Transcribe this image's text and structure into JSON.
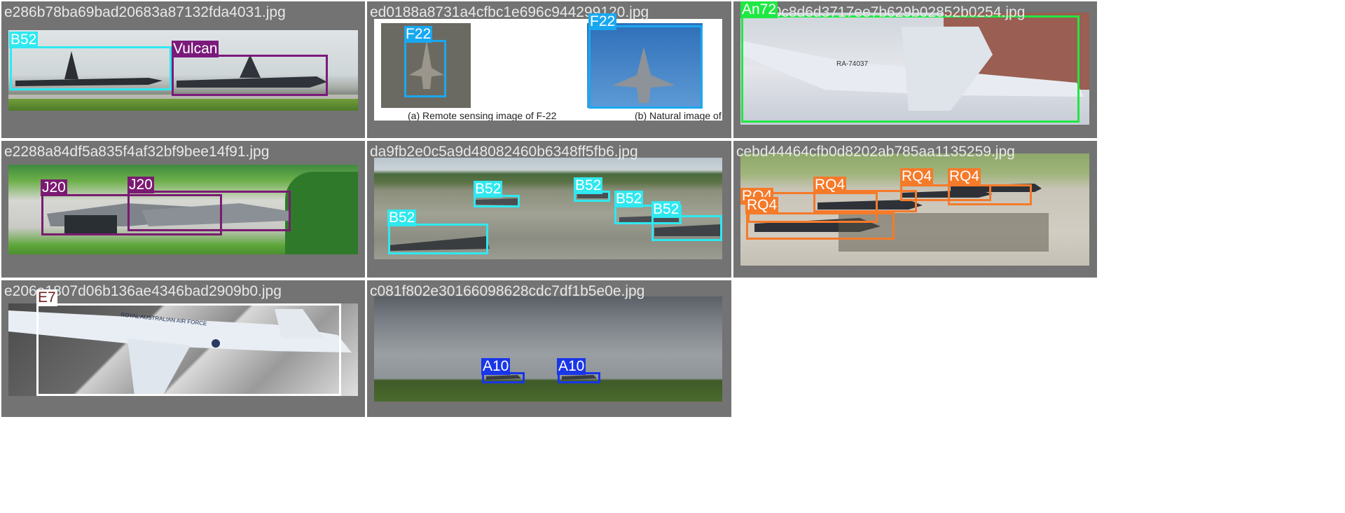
{
  "colors": {
    "tile_bg": "#737373",
    "B52": "#2fe8f0",
    "Vulcan": "#7b1a7b",
    "F22": "#19a8f0",
    "An72": "#1fe842",
    "J20": "#7b1a72",
    "RQ4": "#f57a2a",
    "E7": "#ffffff",
    "A10": "#1936e8"
  },
  "tiles": [
    {
      "filename": "e286b78ba69bad20683a87132fda4031.jpg",
      "labels": [
        "B52",
        "Vulcan"
      ]
    },
    {
      "filename": "ed0188a8731a4cfbc1e696c944299120.jpg",
      "labels": [
        "F22",
        "F22"
      ],
      "captions": [
        "(a) Remote sensing image of F-22",
        "(b) Natural image of F"
      ]
    },
    {
      "filename": "e0c8d6d3717ee7b629b02852b0254.jpg",
      "labels": [
        "An72"
      ],
      "aircraft_text": "RA-74037"
    },
    {
      "filename": "e2288a84df5a835f4af32bf9bee14f91.jpg",
      "labels": [
        "J20",
        "J20"
      ]
    },
    {
      "filename": "da9fb2e0c5a9d48082460b6348ff5fb6.jpg",
      "labels": [
        "B52",
        "B52",
        "B52",
        "B52",
        "B52"
      ]
    },
    {
      "filename": "cebd44464cfb0d8202ab785aa1135259.jpg",
      "labels": [
        "RQ4",
        "RQ4",
        "RQ4",
        "RQ4",
        "RQ4"
      ]
    },
    {
      "filename": "e206a1807d06b136ae4346bad2909b0.jpg",
      "labels": [
        "E7"
      ],
      "aircraft_text": "ROYAL AUSTRALIAN AIR FORCE"
    },
    {
      "filename": "c081f802e30166098628cdc7df1b5e0e.jpg",
      "labels": [
        "A10",
        "A10"
      ]
    }
  ]
}
